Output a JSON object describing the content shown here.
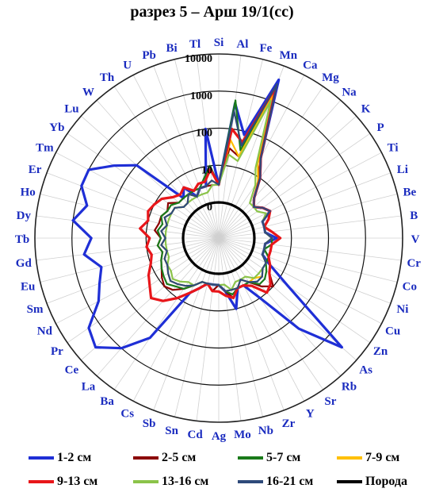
{
  "chart_data": {
    "type": "radar",
    "title": "разрез 5 – Арш 19/1(сс)",
    "scale": "log",
    "radial_ticks": [
      "0",
      "10",
      "100",
      "1000",
      "10000"
    ],
    "rlim": [
      1,
      10000
    ],
    "grid": true,
    "legend_position": "bottom",
    "categories": [
      "Si",
      "Al",
      "Fe",
      "Mn",
      "Ca",
      "Mg",
      "Na",
      "K",
      "P",
      "Ti",
      "Li",
      "Be",
      "B",
      "V",
      "Cr",
      "Co",
      "Ni",
      "Cu",
      "Zn",
      "As",
      "Rb",
      "Sr",
      "Y",
      "Zr",
      "Nb",
      "Mo",
      "Ag",
      "Cd",
      "Sn",
      "Sb",
      "Cs",
      "Ba",
      "La",
      "Ce",
      "Pr",
      "Nd",
      "Sm",
      "Eu",
      "Gd",
      "Tb",
      "Dy",
      "Ho",
      "Er",
      "Tm",
      "Yb",
      "Lu",
      "W",
      "Th",
      "U",
      "Pb",
      "Bi",
      "Tl"
    ],
    "series": [
      {
        "name": "1-2 см",
        "color": "#1f2fd6",
        "width": 3.2,
        "values": [
          3,
          500,
          80,
          4000,
          30,
          10,
          3,
          2,
          3,
          4,
          2,
          2,
          2,
          4,
          2,
          2,
          2,
          4,
          20,
          3000,
          200,
          10,
          3,
          3,
          10,
          3,
          2,
          2,
          2,
          3,
          5,
          200,
          1000,
          3000,
          2000,
          500,
          300,
          200,
          500,
          300,
          1000,
          500,
          1000,
          1000,
          300,
          100,
          3,
          5,
          2,
          3,
          3,
          100
        ]
      },
      {
        "name": "2-5 см",
        "color": "#8b0000",
        "width": 2.2,
        "values": [
          3,
          30,
          20,
          1000,
          20,
          10,
          3,
          2,
          3,
          4,
          3,
          2,
          2,
          3,
          2,
          2,
          3,
          4,
          5,
          10,
          6,
          3,
          3,
          3,
          5,
          3,
          2,
          3,
          2,
          2,
          3,
          5,
          8,
          10,
          8,
          6,
          5,
          4,
          5,
          4,
          6,
          5,
          5,
          4,
          5,
          3,
          3,
          3,
          2,
          3,
          3,
          3
        ]
      },
      {
        "name": "5-7 см",
        "color": "#1a7a1a",
        "width": 2.2,
        "values": [
          3,
          600,
          30,
          2000,
          30,
          10,
          3,
          2,
          3,
          4,
          3,
          2,
          2,
          3,
          3,
          2,
          3,
          3,
          4,
          5,
          5,
          3,
          3,
          3,
          4,
          3,
          2,
          2,
          2,
          2,
          3,
          5,
          6,
          8,
          7,
          6,
          5,
          4,
          5,
          4,
          5,
          4,
          5,
          4,
          4,
          3,
          3,
          3,
          3,
          3,
          5,
          10
        ]
      },
      {
        "name": "7-9 см",
        "color": "#ffc000",
        "width": 2.2,
        "values": [
          3,
          50,
          20,
          1500,
          20,
          8,
          3,
          2,
          3,
          4,
          2,
          2,
          2,
          3,
          2,
          2,
          2,
          3,
          3,
          4,
          3,
          3,
          2,
          3,
          3,
          3,
          2,
          2,
          2,
          2,
          3,
          4,
          5,
          6,
          5,
          4,
          4,
          3,
          4,
          3,
          4,
          3,
          4,
          3,
          3,
          2,
          2,
          3,
          2,
          3,
          3,
          4
        ]
      },
      {
        "name": "9-13 см",
        "color": "#e8161a",
        "width": 3.2,
        "values": [
          3,
          100,
          50,
          2500,
          30,
          10,
          3,
          2,
          3,
          4,
          3,
          2,
          3,
          5,
          3,
          3,
          3,
          4,
          5,
          8,
          10,
          4,
          3,
          3,
          5,
          4,
          3,
          3,
          2,
          3,
          5,
          10,
          20,
          30,
          20,
          15,
          10,
          8,
          10,
          8,
          15,
          10,
          12,
          10,
          8,
          5,
          4,
          5,
          3,
          4,
          4,
          8
        ]
      },
      {
        "name": "13-16 см",
        "color": "#8bc34a",
        "width": 2.2,
        "values": [
          3,
          20,
          15,
          1000,
          15,
          6,
          2,
          2,
          2,
          3,
          2,
          2,
          2,
          3,
          2,
          2,
          2,
          3,
          3,
          3,
          3,
          2,
          2,
          2,
          3,
          2,
          2,
          2,
          2,
          2,
          3,
          3,
          4,
          5,
          4,
          4,
          3,
          3,
          3,
          3,
          3,
          3,
          3,
          3,
          3,
          2,
          2,
          2,
          2,
          2,
          2,
          3
        ]
      },
      {
        "name": "16-21 см",
        "color": "#2e4a7a",
        "width": 2.2,
        "values": [
          3,
          300,
          40,
          3000,
          30,
          10,
          3,
          2,
          3,
          4,
          2,
          2,
          2,
          3,
          2,
          2,
          2,
          3,
          3,
          4,
          4,
          3,
          2,
          3,
          3,
          3,
          2,
          2,
          2,
          2,
          3,
          4,
          5,
          6,
          5,
          4,
          4,
          3,
          4,
          3,
          4,
          3,
          4,
          3,
          3,
          2,
          2,
          3,
          2,
          3,
          3,
          4
        ]
      },
      {
        "name": "Порода",
        "color": "#000000",
        "width": 3.2,
        "values": [
          1,
          1,
          1,
          1,
          1,
          1,
          1,
          1,
          1,
          1,
          1,
          1,
          1,
          1,
          1,
          1,
          1,
          1,
          1,
          1,
          1,
          1,
          1,
          1,
          1,
          1,
          1,
          1,
          1,
          1,
          1,
          1,
          1,
          1,
          1,
          1,
          1,
          1,
          1,
          1,
          1,
          1,
          1,
          1,
          1,
          1,
          1,
          1,
          1,
          1,
          1,
          1
        ]
      }
    ]
  }
}
